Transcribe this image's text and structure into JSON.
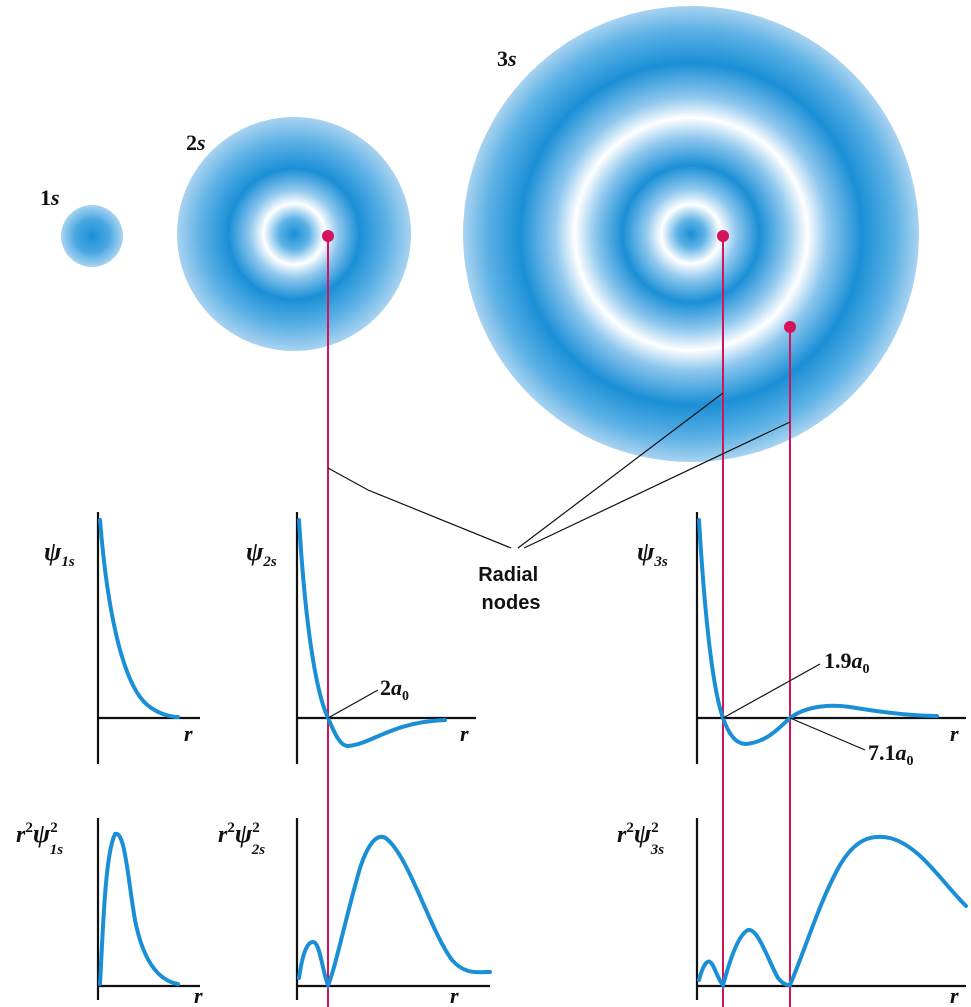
{
  "orbitals": [
    {
      "id": "1s",
      "num": "1",
      "letter": "s"
    },
    {
      "id": "2s",
      "num": "2",
      "letter": "s"
    },
    {
      "id": "3s",
      "num": "3",
      "letter": "s"
    }
  ],
  "psi_labels": [
    {
      "symbol": "ψ",
      "subscript": "1s"
    },
    {
      "symbol": "ψ",
      "subscript": "2s"
    },
    {
      "symbol": "ψ",
      "subscript": "3s"
    }
  ],
  "prob_labels": [
    {
      "prefix": "r",
      "prefix_sup": "2",
      "symbol": "ψ",
      "sup": "2",
      "subscript": "1s"
    },
    {
      "prefix": "r",
      "prefix_sup": "2",
      "symbol": "ψ",
      "sup": "2",
      "subscript": "2s"
    },
    {
      "prefix": "r",
      "prefix_sup": "2",
      "symbol": "ψ",
      "sup": "2",
      "subscript": "3s"
    }
  ],
  "axis_label": "r",
  "radial_nodes_label": {
    "line1": "Radial",
    "line2": "nodes"
  },
  "node_labels": {
    "two_s": {
      "coef": "2",
      "var": "a",
      "sub": "0"
    },
    "three_s_first": {
      "coef": "1.9",
      "var": "a",
      "sub": "0"
    },
    "three_s_second": {
      "coef": "7.1",
      "var": "a",
      "sub": "0"
    }
  },
  "colors": {
    "curve": "#1a8fd6",
    "node": "#d4145a",
    "cloud": "#1a8fd6"
  }
}
